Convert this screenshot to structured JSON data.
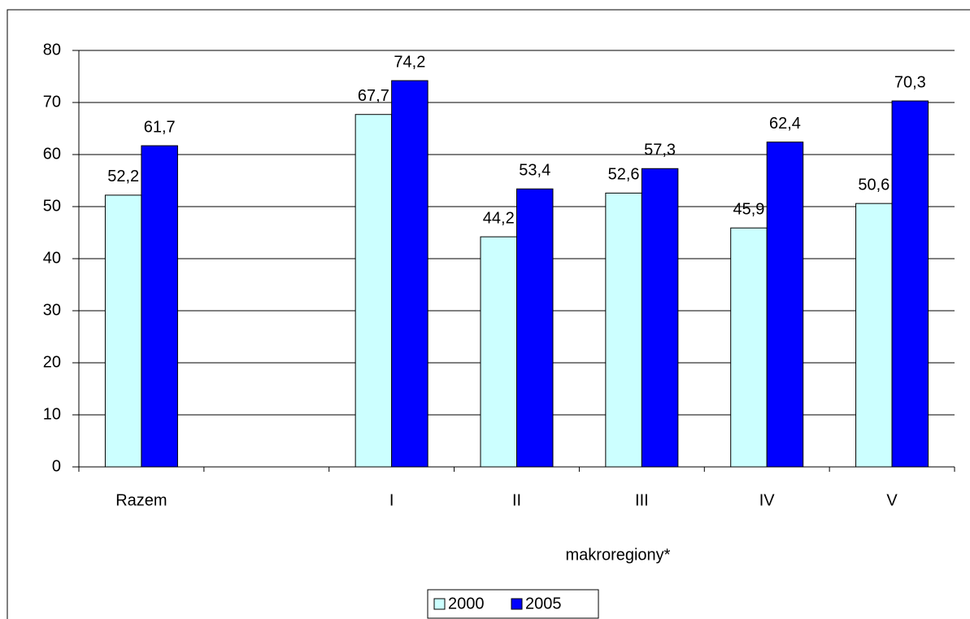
{
  "chart_data": {
    "type": "bar",
    "x_label": "makroregiony*",
    "categories": [
      "Razem",
      null,
      "I",
      "II",
      "III",
      "IV",
      "V"
    ],
    "series": [
      {
        "name": "2000",
        "color": "#ccffff",
        "values": [
          52.2,
          null,
          67.7,
          44.2,
          52.6,
          45.9,
          50.6
        ],
        "value_labels": [
          "52,2",
          null,
          "67,7",
          "44,2",
          "52,6",
          "45,9",
          "50,6"
        ]
      },
      {
        "name": "2005",
        "color": "#0000ff",
        "values": [
          61.7,
          null,
          74.2,
          53.4,
          57.3,
          62.4,
          70.3
        ],
        "value_labels": [
          "61,7",
          null,
          "74,2",
          "53,4",
          "57,3",
          "62,4",
          "70,3"
        ]
      }
    ],
    "ylim": [
      0,
      80
    ],
    "yticks": [
      0,
      10,
      20,
      30,
      40,
      50,
      60,
      70,
      80
    ],
    "grid": true,
    "legend": "bottom"
  }
}
